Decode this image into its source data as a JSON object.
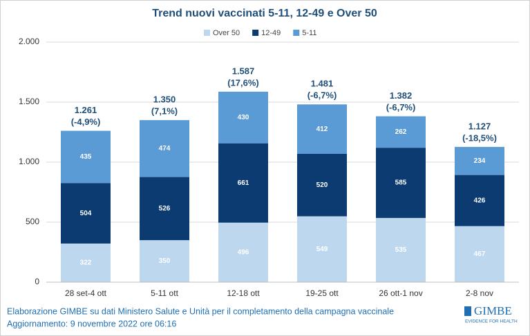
{
  "chart_data": {
    "type": "stacked_bar",
    "title": "Trend nuovi vaccinati 5-11, 12-49 e Over 50",
    "categories": [
      "28 set-4 ott",
      "5-11 ott",
      "12-18 ott",
      "19-25 ott",
      "26 ott-1 nov",
      "2-8 nov"
    ],
    "series": [
      {
        "name": "Over 50",
        "color": "#bdd7ee",
        "values": [
          322,
          350,
          496,
          549,
          535,
          467
        ]
      },
      {
        "name": "12-49",
        "color": "#0b3b70",
        "values": [
          504,
          526,
          661,
          520,
          585,
          426
        ]
      },
      {
        "name": "5-11",
        "color": "#5b9bd5",
        "values": [
          435,
          474,
          430,
          412,
          262,
          234
        ]
      }
    ],
    "totals": {
      "values": [
        1261,
        1350,
        1587,
        1481,
        1382,
        1127
      ],
      "value_labels": [
        "1.261",
        "1.350",
        "1.587",
        "1.481",
        "1.382",
        "1.127"
      ],
      "changes": [
        "(-4,9%)",
        "(7,1%)",
        "(17,6%)",
        "(-6,7%)",
        "(-6,7%)",
        "(-18,5%)"
      ]
    },
    "ylim": [
      0,
      2000
    ],
    "yticks": [
      0,
      500,
      {
        "value": 1000,
        "label": "1.000"
      },
      {
        "value": 1500,
        "label": "1.500"
      },
      {
        "value": 2000,
        "label": "2.000"
      }
    ],
    "grid": true,
    "legend": "top"
  },
  "footer": {
    "lines": [
      "Elaborazione GIMBE su dati Ministero Salute e Unità per il completamento della campagna vaccinale",
      "Aggiornamento: 9 novembre 2022 ore 06:16"
    ],
    "logo": "GIMBE",
    "logo_tagline": "EVIDENCE FOR HEALTH"
  }
}
